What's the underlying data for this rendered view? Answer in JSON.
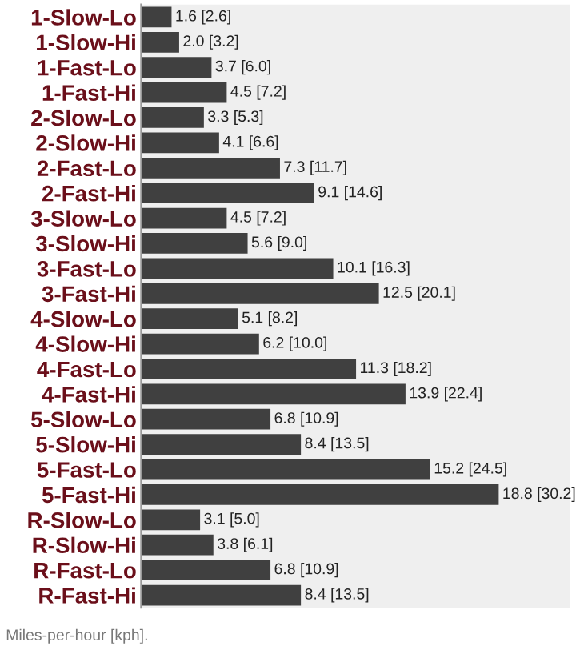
{
  "chart_data": {
    "type": "bar",
    "orientation": "horizontal",
    "categories": [
      "1-Slow-Lo",
      "1-Slow-Hi",
      "1-Fast-Lo",
      "1-Fast-Hi",
      "2-Slow-Lo",
      "2-Slow-Hi",
      "2-Fast-Lo",
      "2-Fast-Hi",
      "3-Slow-Lo",
      "3-Slow-Hi",
      "3-Fast-Lo",
      "3-Fast-Hi",
      "4-Slow-Lo",
      "4-Slow-Hi",
      "4-Fast-Lo",
      "4-Fast-Hi",
      "5-Slow-Lo",
      "5-Slow-Hi",
      "5-Fast-Lo",
      "5-Fast-Hi",
      "R-Slow-Lo",
      "R-Slow-Hi",
      "R-Fast-Lo",
      "R-Fast-Hi"
    ],
    "values": [
      1.6,
      2.0,
      3.7,
      4.5,
      3.3,
      4.1,
      7.3,
      9.1,
      4.5,
      5.6,
      10.1,
      12.5,
      5.1,
      6.2,
      11.3,
      13.9,
      6.8,
      8.4,
      15.2,
      18.8,
      3.1,
      3.8,
      6.8,
      8.4
    ],
    "value_labels": [
      "1.6 [2.6]",
      "2.0 [3.2]",
      "3.7 [6.0]",
      "4.5 [7.2]",
      "3.3 [5.3]",
      "4.1 [6.6]",
      "7.3 [11.7]",
      "9.1 [14.6]",
      "4.5 [7.2]",
      "5.6 [9.0]",
      "10.1 [16.3]",
      "12.5 [20.1]",
      "5.1 [8.2]",
      "6.2 [10.0]",
      "11.3 [18.2]",
      "13.9 [22.4]",
      "6.8 [10.9]",
      "8.4 [13.5]",
      "15.2 [24.5]",
      "18.8 [30.2]",
      "3.1 [5.0]",
      "3.8 [6.1]",
      "6.8 [10.9]",
      "8.4 [13.5]"
    ],
    "color": "#404040",
    "annotations": [
      "Miles-per-hour [kph]."
    ],
    "tick_labels": "y",
    "grid": false,
    "legend": false
  }
}
